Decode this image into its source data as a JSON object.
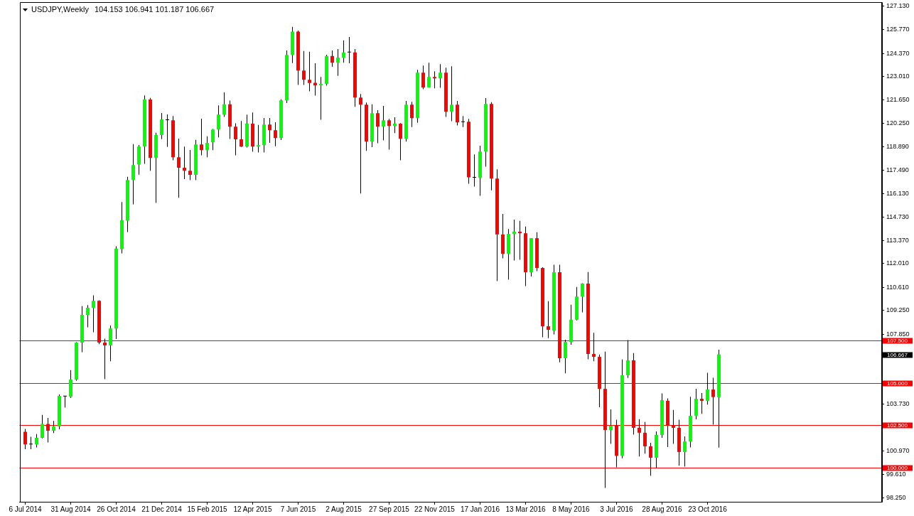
{
  "chart_data": {
    "type": "candlestick",
    "title": "USDJPY,Weekly",
    "subtitle": "104.153 106.941 101.187 106.667",
    "x": [
      "2014-07-06",
      "2014-07-13",
      "2014-07-20",
      "2014-07-27",
      "2014-08-03",
      "2014-08-10",
      "2014-08-17",
      "2014-08-24",
      "2014-08-31",
      "2014-09-07",
      "2014-09-14",
      "2014-09-21",
      "2014-09-28",
      "2014-10-05",
      "2014-10-12",
      "2014-10-19",
      "2014-10-26",
      "2014-11-02",
      "2014-11-09",
      "2014-11-16",
      "2014-11-23",
      "2014-11-30",
      "2014-12-07",
      "2014-12-14",
      "2014-12-21",
      "2014-12-28",
      "2015-01-04",
      "2015-01-11",
      "2015-01-18",
      "2015-01-25",
      "2015-02-01",
      "2015-02-08",
      "2015-02-15",
      "2015-02-22",
      "2015-03-01",
      "2015-03-08",
      "2015-03-15",
      "2015-03-22",
      "2015-03-29",
      "2015-04-05",
      "2015-04-12",
      "2015-04-19",
      "2015-04-26",
      "2015-05-03",
      "2015-05-10",
      "2015-05-17",
      "2015-05-24",
      "2015-05-31",
      "2015-06-07",
      "2015-06-14",
      "2015-06-21",
      "2015-06-28",
      "2015-07-05",
      "2015-07-12",
      "2015-07-19",
      "2015-07-26",
      "2015-08-02",
      "2015-08-09",
      "2015-08-16",
      "2015-08-23",
      "2015-08-30",
      "2015-09-06",
      "2015-09-13",
      "2015-09-20",
      "2015-09-27",
      "2015-10-04",
      "2015-10-11",
      "2015-10-18",
      "2015-10-25",
      "2015-11-01",
      "2015-11-08",
      "2015-11-15",
      "2015-11-22",
      "2015-11-29",
      "2015-12-06",
      "2015-12-13",
      "2015-12-20",
      "2015-12-27",
      "2016-01-03",
      "2016-01-10",
      "2016-01-17",
      "2016-01-24",
      "2016-01-31",
      "2016-02-07",
      "2016-02-14",
      "2016-02-21",
      "2016-02-28",
      "2016-03-06",
      "2016-03-13",
      "2016-03-20",
      "2016-03-27",
      "2016-04-03",
      "2016-04-10",
      "2016-04-17",
      "2016-04-24",
      "2016-05-01",
      "2016-05-08",
      "2016-05-15",
      "2016-05-22",
      "2016-05-29",
      "2016-06-05",
      "2016-06-12",
      "2016-06-19",
      "2016-06-26",
      "2016-07-03",
      "2016-07-10",
      "2016-07-17",
      "2016-07-24",
      "2016-07-31",
      "2016-08-07",
      "2016-08-14",
      "2016-08-21",
      "2016-08-28",
      "2016-09-04",
      "2016-09-11",
      "2016-09-18",
      "2016-09-25",
      "2016-10-02",
      "2016-10-09",
      "2016-10-16",
      "2016-10-23",
      "2016-10-30",
      "2016-11-06"
    ],
    "ohlc": [
      [
        102.12,
        102.28,
        101.09,
        101.37
      ],
      [
        101.37,
        101.82,
        101.09,
        101.37
      ],
      [
        101.37,
        101.98,
        101.2,
        101.76
      ],
      [
        101.76,
        103.11,
        101.73,
        102.58
      ],
      [
        102.58,
        102.93,
        101.49,
        102.18
      ],
      [
        102.18,
        102.75,
        102.04,
        102.43
      ],
      [
        102.43,
        104.31,
        102.26,
        104.23
      ],
      [
        104.2,
        104.23,
        103.54,
        104.2
      ],
      [
        104.17,
        105.74,
        104.1,
        105.19
      ],
      [
        105.19,
        107.38,
        105.11,
        107.36
      ],
      [
        107.36,
        109.5,
        106.8,
        108.99
      ],
      [
        108.99,
        109.57,
        108.26,
        109.41
      ],
      [
        109.41,
        110.14,
        107.97,
        109.82
      ],
      [
        109.82,
        109.85,
        107.27,
        107.36
      ],
      [
        107.36,
        107.59,
        105.21,
        107.19
      ],
      [
        107.19,
        108.36,
        106.26,
        108.19
      ],
      [
        108.19,
        113.02,
        107.57,
        112.89
      ],
      [
        112.86,
        115.63,
        112.61,
        114.56
      ],
      [
        114.53,
        117.11,
        113.86,
        116.92
      ],
      [
        116.92,
        119.03,
        115.49,
        117.8
      ],
      [
        117.83,
        118.98,
        117.24,
        118.89
      ],
      [
        118.89,
        121.9,
        117.87,
        121.65
      ],
      [
        121.65,
        121.75,
        117.47,
        118.22
      ],
      [
        118.22,
        119.7,
        115.57,
        119.56
      ],
      [
        119.56,
        120.86,
        119.32,
        120.48
      ],
      [
        120.44,
        120.78,
        118.87,
        120.44
      ],
      [
        120.43,
        120.68,
        118.08,
        118.26
      ],
      [
        118.26,
        119.36,
        115.88,
        117.64
      ],
      [
        117.64,
        118.89,
        116.97,
        117.47
      ],
      [
        117.47,
        118.69,
        116.91,
        117.22
      ],
      [
        117.22,
        119.28,
        116.91,
        119.01
      ],
      [
        119.01,
        120.53,
        118.37,
        118.68
      ],
      [
        118.68,
        119.49,
        118.26,
        119.1
      ],
      [
        119.14,
        119.92,
        118.68,
        119.89
      ],
      [
        119.89,
        121.31,
        119.43,
        120.77
      ],
      [
        120.77,
        122.07,
        120.63,
        121.37
      ],
      [
        121.37,
        121.59,
        119.33,
        120.06
      ],
      [
        120.06,
        120.25,
        118.37,
        119.31
      ],
      [
        119.31,
        120.39,
        118.86,
        118.89
      ],
      [
        118.89,
        120.77,
        118.83,
        120.23
      ],
      [
        120.23,
        120.89,
        118.58,
        118.89
      ],
      [
        118.89,
        120.16,
        118.54,
        118.97
      ],
      [
        118.97,
        120.57,
        118.54,
        120.18
      ],
      [
        120.18,
        120.57,
        119.1,
        119.85
      ],
      [
        119.85,
        120.32,
        118.91,
        119.39
      ],
      [
        119.39,
        121.66,
        119.27,
        121.6
      ],
      [
        121.6,
        124.54,
        121.45,
        124.28
      ],
      [
        124.28,
        125.93,
        123.8,
        125.65
      ],
      [
        125.65,
        125.71,
        122.51,
        123.36
      ],
      [
        123.36,
        124.51,
        122.51,
        122.81
      ],
      [
        122.81,
        124.46,
        122.13,
        122.63
      ],
      [
        122.64,
        123.79,
        121.88,
        122.48
      ],
      [
        122.48,
        122.98,
        120.46,
        122.57
      ],
      [
        122.56,
        124.29,
        122.47,
        124.21
      ],
      [
        124.21,
        124.54,
        123.58,
        123.82
      ],
      [
        123.82,
        124.62,
        123.04,
        124.12
      ],
      [
        124.11,
        125.13,
        123.82,
        124.42
      ],
      [
        124.42,
        125.33,
        123.79,
        124.42
      ],
      [
        124.42,
        124.62,
        121.23,
        121.77
      ],
      [
        121.77,
        121.98,
        116.13,
        121.35
      ],
      [
        121.35,
        121.48,
        118.64,
        119.18
      ],
      [
        119.18,
        121.37,
        118.85,
        120.85
      ],
      [
        120.85,
        121.03,
        119.08,
        120.06
      ],
      [
        120.06,
        121.28,
        119.25,
        120.43
      ],
      [
        120.43,
        120.52,
        118.71,
        120.1
      ],
      [
        120.1,
        120.61,
        119.68,
        120.23
      ],
      [
        120.23,
        120.27,
        118.08,
        119.35
      ],
      [
        119.35,
        121.57,
        119.18,
        121.35
      ],
      [
        121.35,
        121.52,
        120.04,
        120.56
      ],
      [
        120.56,
        123.4,
        120.29,
        123.23
      ],
      [
        123.23,
        123.65,
        122.26,
        122.36
      ],
      [
        122.36,
        123.82,
        122.36,
        122.98
      ],
      [
        122.98,
        123.32,
        122.31,
        122.9
      ],
      [
        122.9,
        123.73,
        122.34,
        123.23
      ],
      [
        123.23,
        123.52,
        120.63,
        120.93
      ],
      [
        120.93,
        123.61,
        120.38,
        121.35
      ],
      [
        121.35,
        121.57,
        120.13,
        120.31
      ],
      [
        120.33,
        120.68,
        120.04,
        120.33
      ],
      [
        120.35,
        120.52,
        116.7,
        117.08
      ],
      [
        117.06,
        118.43,
        116.53,
        117.06
      ],
      [
        117.05,
        118.94,
        115.99,
        118.59
      ],
      [
        118.59,
        121.74,
        117.7,
        121.39
      ],
      [
        121.39,
        121.5,
        116.32,
        117.01
      ],
      [
        117.01,
        117.55,
        110.98,
        113.72
      ],
      [
        113.72,
        114.93,
        112.31,
        112.58
      ],
      [
        112.58,
        114.04,
        111.06,
        113.75
      ],
      [
        113.75,
        114.59,
        112.19,
        113.88
      ],
      [
        113.88,
        114.52,
        112.23,
        113.79
      ],
      [
        113.79,
        114.18,
        110.68,
        111.5
      ],
      [
        111.5,
        113.5,
        111.25,
        113.5
      ],
      [
        113.5,
        113.85,
        111.56,
        111.75
      ],
      [
        111.75,
        111.79,
        107.68,
        108.32
      ],
      [
        108.32,
        109.8,
        107.62,
        108.11
      ],
      [
        108.07,
        111.94,
        107.84,
        111.5
      ],
      [
        111.5,
        111.94,
        106.2,
        106.44
      ],
      [
        106.44,
        107.53,
        105.55,
        107.4
      ],
      [
        107.4,
        109.59,
        107.24,
        108.71
      ],
      [
        108.71,
        110.63,
        108.67,
        110.07
      ],
      [
        110.07,
        110.85,
        109.14,
        110.83
      ],
      [
        110.83,
        111.51,
        106.38,
        106.69
      ],
      [
        106.69,
        107.94,
        106.26,
        106.52
      ],
      [
        106.52,
        106.66,
        103.56,
        104.64
      ],
      [
        104.64,
        106.83,
        98.82,
        102.22
      ],
      [
        102.22,
        103.43,
        101.41,
        102.48
      ],
      [
        102.48,
        102.83,
        100.03,
        100.7
      ],
      [
        100.7,
        106.37,
        100.56,
        105.44
      ],
      [
        105.44,
        107.51,
        105.28,
        106.32
      ],
      [
        106.32,
        106.75,
        101.95,
        102.35
      ],
      [
        102.35,
        102.86,
        100.66,
        102.06
      ],
      [
        102.06,
        102.69,
        100.83,
        101.26
      ],
      [
        101.26,
        101.47,
        99.53,
        100.59
      ],
      [
        100.59,
        102.14,
        99.96,
        101.93
      ],
      [
        101.93,
        104.37,
        101.76,
        103.98
      ],
      [
        103.94,
        104.08,
        101.22,
        102.47
      ],
      [
        102.47,
        103.4,
        101.41,
        102.35
      ],
      [
        102.35,
        102.83,
        100.12,
        100.93
      ],
      [
        100.93,
        101.85,
        100.07,
        101.55
      ],
      [
        101.55,
        104.18,
        101.2,
        103.06
      ],
      [
        103.06,
        104.64,
        102.85,
        104.06
      ],
      [
        104.06,
        104.39,
        103.17,
        103.93
      ],
      [
        103.93,
        105.59,
        103.71,
        104.6
      ],
      [
        104.6,
        105.29,
        102.53,
        104.16
      ],
      [
        104.153,
        106.941,
        101.187,
        106.667
      ]
    ],
    "colors": [
      "#ff0000",
      "#000000",
      "#00ff00",
      "#00ff00",
      "#ff0000",
      "#00ff00",
      "#00ff00",
      "#000000",
      "#00ff00",
      "#00ff00",
      "#00ff00",
      "#00ff00",
      "#00ff00",
      "#ff0000",
      "#ff0000",
      "#00ff00",
      "#00ff00",
      "#00ff00",
      "#00ff00",
      "#00ff00",
      "#00ff00",
      "#00ff00",
      "#ff0000",
      "#00ff00",
      "#00ff00",
      "#000000",
      "#ff0000",
      "#ff0000",
      "#ff0000",
      "#ff0000",
      "#00ff00",
      "#ff0000",
      "#00ff00",
      "#00ff00",
      "#00ff00",
      "#00ff00",
      "#ff0000",
      "#ff0000",
      "#ff0000",
      "#00ff00",
      "#ff0000",
      "#00ff00",
      "#00ff00",
      "#ff0000",
      "#ff0000",
      "#00ff00",
      "#00ff00",
      "#00ff00",
      "#ff0000",
      "#ff0000",
      "#ff0000",
      "#ff0000",
      "#00ff00",
      "#00ff00",
      "#ff0000",
      "#00ff00",
      "#00ff00",
      "#000000",
      "#ff0000",
      "#ff0000",
      "#ff0000",
      "#00ff00",
      "#ff0000",
      "#00ff00",
      "#ff0000",
      "#00ff00",
      "#ff0000",
      "#00ff00",
      "#ff0000",
      "#00ff00",
      "#ff0000",
      "#00ff00",
      "#ff0000",
      "#00ff00",
      "#ff0000",
      "#00ff00",
      "#ff0000",
      "#000000",
      "#ff0000",
      "#000000",
      "#00ff00",
      "#00ff00",
      "#ff0000",
      "#ff0000",
      "#ff0000",
      "#00ff00",
      "#00ff00",
      "#ff0000",
      "#ff0000",
      "#00ff00",
      "#ff0000",
      "#ff0000",
      "#ff0000",
      "#00ff00",
      "#ff0000",
      "#00ff00",
      "#00ff00",
      "#00ff00",
      "#00ff00",
      "#ff0000",
      "#ff0000",
      "#ff0000",
      "#ff0000",
      "#00ff00",
      "#ff0000",
      "#00ff00",
      "#00ff00",
      "#ff0000",
      "#ff0000",
      "#ff0000",
      "#ff0000",
      "#00ff00",
      "#00ff00",
      "#ff0000",
      "#ff0000",
      "#ff0000",
      "#00ff00",
      "#00ff00",
      "#00ff00",
      "#ff0000",
      "#00ff00",
      "#ff0000",
      "#00ff00"
    ],
    "xlim": [
      "2014-06-29",
      "2017-05-25"
    ],
    "xticks": [
      {
        "value": "2014-07-06",
        "label": "6 Jul 2014"
      },
      {
        "value": "2014-08-31",
        "label": "31 Aug 2014"
      },
      {
        "value": "2014-10-26",
        "label": "26 Oct 2014"
      },
      {
        "value": "2014-12-21",
        "label": "21 Dec 2014"
      },
      {
        "value": "2015-02-15",
        "label": "15 Feb 2015"
      },
      {
        "value": "2015-04-12",
        "label": "12 Apr 2015"
      },
      {
        "value": "2015-06-07",
        "label": "7 Jun 2015"
      },
      {
        "value": "2015-08-02",
        "label": "2 Aug 2015"
      },
      {
        "value": "2015-09-27",
        "label": "27 Sep 2015"
      },
      {
        "value": "2015-11-22",
        "label": "22 Nov 2015"
      },
      {
        "value": "2016-01-17",
        "label": "17 Jan 2016"
      },
      {
        "value": "2016-03-13",
        "label": "13 Mar 2016"
      },
      {
        "value": "2016-05-08",
        "label": "8 May 2016"
      },
      {
        "value": "2016-07-03",
        "label": "3 Jul 2016"
      },
      {
        "value": "2016-08-28",
        "label": "28 Aug 2016"
      },
      {
        "value": "2016-10-23",
        "label": "23 Oct 2016"
      }
    ],
    "ylim": [
      98.0,
      127.38
    ],
    "yticks": [
      {
        "value": 127.13,
        "label": "127.130"
      },
      {
        "value": 125.77,
        "label": "125.770"
      },
      {
        "value": 124.37,
        "label": "124.370"
      },
      {
        "value": 123.01,
        "label": "123.010"
      },
      {
        "value": 121.65,
        "label": "121.650"
      },
      {
        "value": 120.25,
        "label": "120.250"
      },
      {
        "value": 118.89,
        "label": "118.890"
      },
      {
        "value": 117.49,
        "label": "117.490"
      },
      {
        "value": 116.13,
        "label": "116.130"
      },
      {
        "value": 114.73,
        "label": "114.730"
      },
      {
        "value": 113.37,
        "label": "113.370"
      },
      {
        "value": 112.01,
        "label": "112.010"
      },
      {
        "value": 110.61,
        "label": "110.610"
      },
      {
        "value": 109.25,
        "label": "109.250"
      },
      {
        "value": 107.85,
        "label": "107.850"
      },
      {
        "value": 103.73,
        "label": "103.730"
      },
      {
        "value": 100.97,
        "label": "100.970"
      },
      {
        "value": 99.61,
        "label": "99.610"
      },
      {
        "value": 98.25,
        "label": "98.250"
      }
    ],
    "ref_lines": [
      {
        "axis": "y",
        "value": 107.5,
        "label": "107.500",
        "color": "#ff0000"
      },
      {
        "axis": "y",
        "value": 105.0,
        "label": "105.000",
        "color": "#ff0000"
      },
      {
        "axis": "y",
        "value": 102.5,
        "label": "102.500",
        "color": "#ff0000"
      },
      {
        "axis": "y",
        "value": 100.0,
        "label": "100.000",
        "color": "#ff0000"
      }
    ],
    "annotations": [
      "106.667"
    ]
  }
}
